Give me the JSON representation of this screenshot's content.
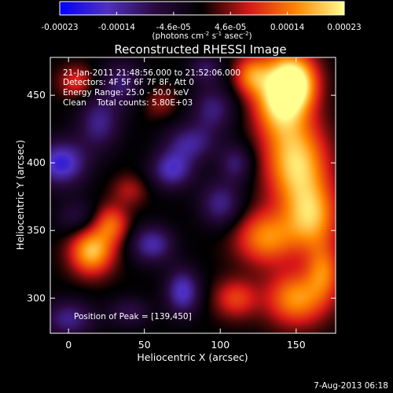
{
  "chart_data": {
    "type": "heatmap",
    "title": "Reconstructed RHESSI Image",
    "xlabel": "Heliocentric X (arcsec)",
    "ylabel": "Heliocentric Y (arcsec)",
    "xlim": [
      -12,
      176
    ],
    "ylim": [
      274,
      478
    ],
    "x_ticks": [
      0,
      50,
      100,
      150
    ],
    "y_ticks": [
      300,
      350,
      400,
      450
    ],
    "colorbar": {
      "min": -0.00023,
      "max": 0.00023,
      "tick_labels": [
        "-0.00023",
        "-0.00014",
        "-4.6e-05",
        "4.6e-05",
        "0.00014",
        "0.00023"
      ],
      "unit_label": "(photons cm-2 s-1 asec-2)",
      "colormap": [
        "#0000ff",
        "#5030c0",
        "#2a0a40",
        "#000000",
        "#d81818",
        "#ff8800",
        "#ffff90"
      ]
    },
    "annotations": {
      "time": "21-Jan-2011 21:48:56.000 to 21:52:06.000",
      "detectors": "Detectors: 4F 5F 6F 7F 8F, Att 0",
      "energy": "Energy Range: 25.0 - 50.0 keV",
      "clean": "Clean    Total counts: 5.80E+03",
      "peak": "Position of Peak = [139,450]"
    },
    "grid": false,
    "sources": [
      {
        "x": 139,
        "y": 450,
        "amp": 0.00023,
        "sx": 12,
        "sy": 20
      },
      {
        "x": 150,
        "y": 460,
        "amp": 0.00018,
        "sx": 10,
        "sy": 14
      },
      {
        "x": 120,
        "y": 465,
        "amp": 0.00012,
        "sx": 8,
        "sy": 10
      },
      {
        "x": 150,
        "y": 400,
        "amp": 0.0002,
        "sx": 14,
        "sy": 22
      },
      {
        "x": 160,
        "y": 360,
        "amp": 0.00017,
        "sx": 12,
        "sy": 18
      },
      {
        "x": 130,
        "y": 345,
        "amp": 0.00015,
        "sx": 14,
        "sy": 14
      },
      {
        "x": 150,
        "y": 300,
        "amp": 0.00016,
        "sx": 14,
        "sy": 14
      },
      {
        "x": 110,
        "y": 300,
        "amp": 0.0001,
        "sx": 10,
        "sy": 10
      },
      {
        "x": 168,
        "y": 320,
        "amp": 0.00012,
        "sx": 8,
        "sy": 14
      },
      {
        "x": 15,
        "y": 335,
        "amp": 0.00019,
        "sx": 10,
        "sy": 12
      },
      {
        "x": 28,
        "y": 355,
        "amp": 0.00012,
        "sx": 8,
        "sy": 10
      },
      {
        "x": 5,
        "y": 460,
        "amp": 9e-05,
        "sx": 8,
        "sy": 8
      },
      {
        "x": 40,
        "y": 380,
        "amp": 6e-05,
        "sx": 8,
        "sy": 8
      },
      {
        "x": 60,
        "y": 445,
        "amp": 5e-05,
        "sx": 8,
        "sy": 8
      },
      {
        "x": 80,
        "y": 415,
        "amp": -0.00012,
        "sx": 12,
        "sy": 10
      },
      {
        "x": 68,
        "y": 395,
        "amp": -0.00015,
        "sx": 10,
        "sy": 10
      },
      {
        "x": -5,
        "y": 400,
        "amp": -0.00018,
        "sx": 12,
        "sy": 12
      },
      {
        "x": 20,
        "y": 430,
        "amp": -0.00012,
        "sx": 10,
        "sy": 14
      },
      {
        "x": 35,
        "y": 460,
        "amp": -0.0001,
        "sx": 10,
        "sy": 12
      },
      {
        "x": 75,
        "y": 305,
        "amp": -0.00016,
        "sx": 8,
        "sy": 12
      },
      {
        "x": 55,
        "y": 340,
        "amp": -0.00014,
        "sx": 10,
        "sy": 10
      },
      {
        "x": 100,
        "y": 370,
        "amp": -0.00012,
        "sx": 10,
        "sy": 12
      },
      {
        "x": 95,
        "y": 440,
        "amp": -0.00011,
        "sx": 10,
        "sy": 12
      },
      {
        "x": 110,
        "y": 400,
        "amp": -0.0001,
        "sx": 8,
        "sy": 10
      },
      {
        "x": 0,
        "y": 285,
        "amp": -0.00012,
        "sx": 12,
        "sy": 10
      },
      {
        "x": 40,
        "y": 290,
        "amp": -8e-05,
        "sx": 10,
        "sy": 8
      },
      {
        "x": 90,
        "y": 470,
        "amp": -9e-05,
        "sx": 8,
        "sy": 8
      },
      {
        "x": 5,
        "y": 360,
        "amp": -7e-05,
        "sx": 10,
        "sy": 10
      }
    ]
  },
  "footer": {
    "date": "7-Aug-2013 06:18"
  }
}
